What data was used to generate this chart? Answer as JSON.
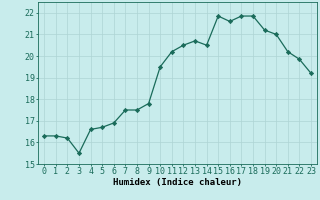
{
  "x": [
    0,
    1,
    2,
    3,
    4,
    5,
    6,
    7,
    8,
    9,
    10,
    11,
    12,
    13,
    14,
    15,
    16,
    17,
    18,
    19,
    20,
    21,
    22,
    23
  ],
  "y": [
    16.3,
    16.3,
    16.2,
    15.5,
    16.6,
    16.7,
    16.9,
    17.5,
    17.5,
    17.8,
    19.5,
    20.2,
    20.5,
    20.7,
    20.5,
    21.85,
    21.6,
    21.85,
    21.85,
    21.2,
    21.0,
    20.2,
    19.85,
    19.2
  ],
  "line_color": "#1a6b5a",
  "marker": "D",
  "marker_size": 2.2,
  "background_color": "#c8ecec",
  "grid_color": "#aed4d4",
  "xlabel": "Humidex (Indice chaleur)",
  "ylabel": "",
  "ylim": [
    15,
    22.5
  ],
  "xlim": [
    -0.5,
    23.5
  ],
  "yticks": [
    15,
    16,
    17,
    18,
    19,
    20,
    21,
    22
  ],
  "xticks": [
    0,
    1,
    2,
    3,
    4,
    5,
    6,
    7,
    8,
    9,
    10,
    11,
    12,
    13,
    14,
    15,
    16,
    17,
    18,
    19,
    20,
    21,
    22,
    23
  ],
  "label_fontsize": 6.5,
  "tick_fontsize": 6.0,
  "linewidth": 0.9
}
